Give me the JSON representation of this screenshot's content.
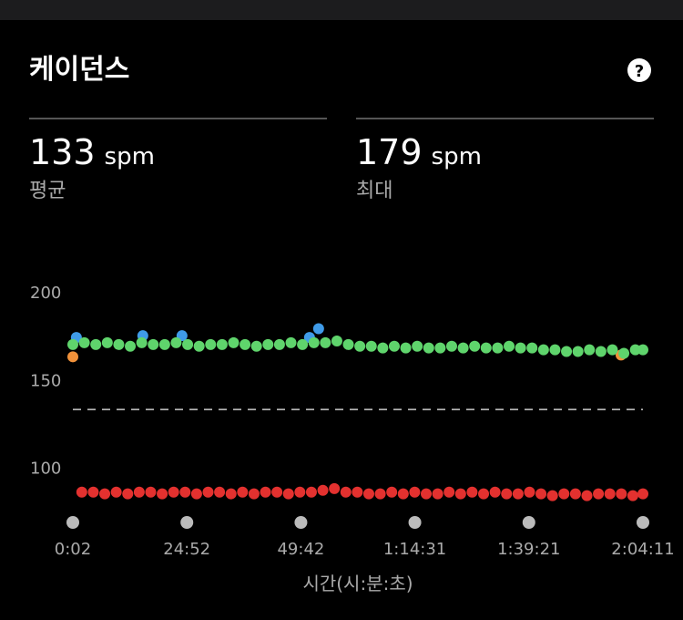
{
  "header": {
    "title": "케이던스",
    "help_icon": "?"
  },
  "stats": [
    {
      "value": 133,
      "unit": "spm",
      "label": "평균"
    },
    {
      "value": 179,
      "unit": "spm",
      "label": "최대"
    }
  ],
  "chart_data": {
    "type": "scatter",
    "x_label": "시간(시:분:초)",
    "xlim": [
      2,
      7451
    ],
    "xticks": [
      {
        "value": 2,
        "label": "0:02"
      },
      {
        "value": 1492,
        "label": "24:52"
      },
      {
        "value": 2982,
        "label": "49:42"
      },
      {
        "value": 4471,
        "label": "1:14:31"
      },
      {
        "value": 5961,
        "label": "1:39:21"
      },
      {
        "value": 7451,
        "label": "2:04:11"
      }
    ],
    "ylim": [
      76,
      200
    ],
    "yticks": [
      200,
      150,
      100
    ],
    "average_line": 133,
    "series": [
      {
        "color": "#3f9be8",
        "x": [
          48,
          916,
          1428,
          3094,
          3213
        ],
        "values": [
          174,
          175,
          175,
          174,
          179
        ]
      },
      {
        "color": "#f0913a",
        "x": [
          2,
          7165
        ],
        "values": [
          163,
          164
        ]
      },
      {
        "color": "#5fd46c",
        "x": [
          2,
          152,
          302,
          452,
          602,
          752,
          902,
          1052,
          1202,
          1352,
          1502,
          1652,
          1802,
          1952,
          2102,
          2252,
          2402,
          2552,
          2702,
          2852,
          3002,
          3152,
          3302,
          3452,
          3602,
          3752,
          3902,
          4052,
          4202,
          4352,
          4502,
          4652,
          4802,
          4952,
          5102,
          5252,
          5402,
          5552,
          5702,
          5852,
          6002,
          6152,
          6302,
          6452,
          6602,
          6752,
          6902,
          7052,
          7202,
          7352,
          7451
        ],
        "values": [
          170,
          171,
          170,
          171,
          170,
          169,
          171,
          170,
          170,
          171,
          170,
          169,
          170,
          170,
          171,
          170,
          169,
          170,
          170,
          171,
          170,
          171,
          171,
          172,
          170,
          169,
          169,
          168,
          169,
          168,
          169,
          168,
          168,
          169,
          168,
          169,
          168,
          168,
          169,
          168,
          168,
          167,
          167,
          166,
          166,
          167,
          166,
          167,
          165,
          167,
          167
        ]
      },
      {
        "color": "#e3312f",
        "x": [
          119,
          269,
          419,
          569,
          719,
          869,
          1019,
          1169,
          1319,
          1469,
          1619,
          1769,
          1919,
          2069,
          2219,
          2369,
          2519,
          2669,
          2819,
          2969,
          3119,
          3269,
          3419,
          3569,
          3719,
          3869,
          4019,
          4169,
          4319,
          4469,
          4619,
          4769,
          4919,
          5069,
          5219,
          5369,
          5519,
          5669,
          5819,
          5969,
          6119,
          6269,
          6419,
          6569,
          6719,
          6869,
          7019,
          7169,
          7319,
          7451
        ],
        "values": [
          86,
          86,
          85,
          86,
          85,
          86,
          86,
          85,
          86,
          86,
          85,
          86,
          86,
          85,
          86,
          85,
          86,
          86,
          85,
          86,
          86,
          87,
          88,
          86,
          86,
          85,
          85,
          86,
          85,
          86,
          85,
          85,
          86,
          85,
          86,
          85,
          86,
          85,
          85,
          86,
          85,
          84,
          85,
          85,
          84,
          85,
          85,
          85,
          84,
          85
        ]
      }
    ]
  }
}
